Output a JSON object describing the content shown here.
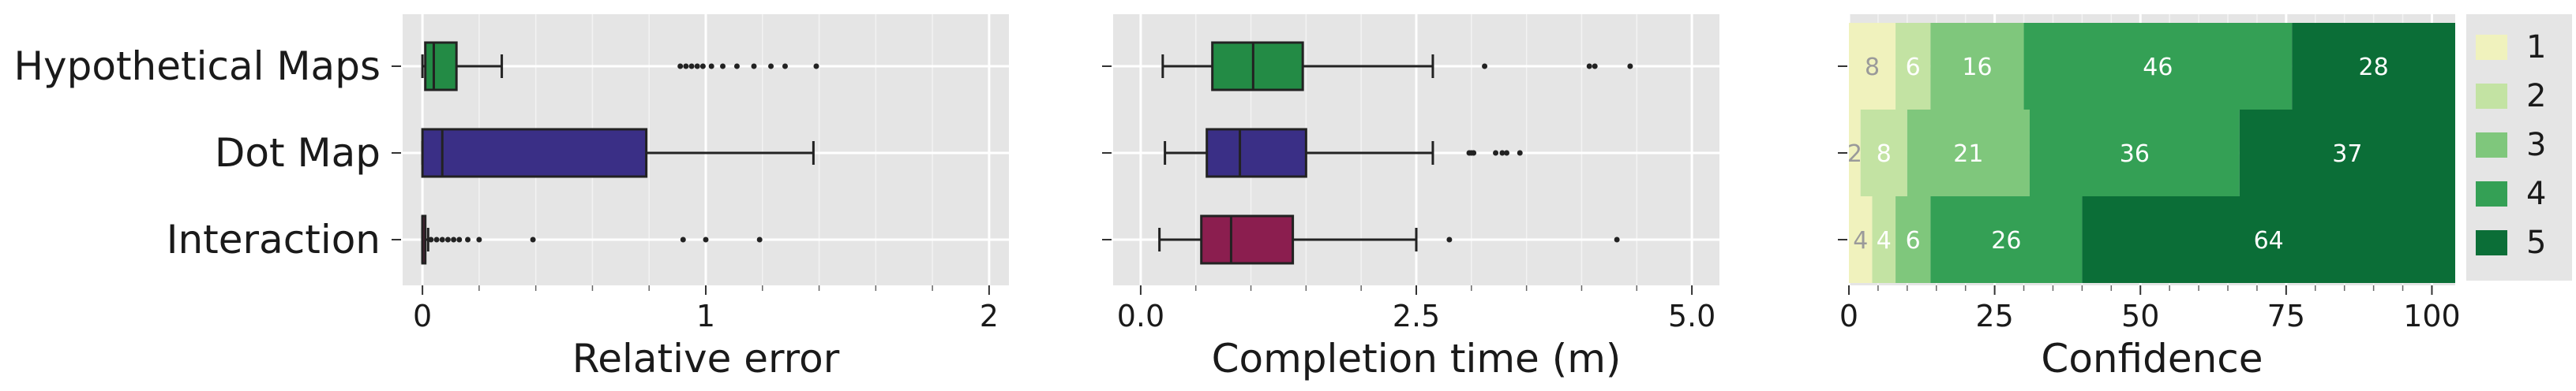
{
  "chart_data": [
    {
      "type": "box",
      "xlabel": "Relative error",
      "xlim": [
        -0.07,
        2.07
      ],
      "xticks": [
        0,
        1,
        2
      ],
      "xminor": [
        0.2,
        0.4,
        0.6,
        0.8,
        1.2,
        1.4,
        1.6,
        1.8
      ],
      "categories": [
        "Hypothetical Maps",
        "Dot Map",
        "Interaction"
      ],
      "boxes": [
        {
          "name": "Hypothetical Maps",
          "color": "#238b45",
          "whislo": 0.0,
          "q1": 0.01,
          "med": 0.04,
          "q3": 0.12,
          "whishi": 0.28,
          "fliers": [
            0.91,
            0.93,
            0.95,
            0.97,
            0.99,
            1.02,
            1.06,
            1.11,
            1.17,
            1.23,
            1.28,
            1.39
          ]
        },
        {
          "name": "Dot Map",
          "color": "#3a2f86",
          "whislo": 0.0,
          "q1": 0.0,
          "med": 0.07,
          "q3": 0.79,
          "whishi": 1.38,
          "fliers": []
        },
        {
          "name": "Interaction",
          "color": "#8b1e4f",
          "whislo": 0.0,
          "q1": 0.0,
          "med": 0.0,
          "q3": 0.01,
          "whishi": 0.02,
          "fliers": [
            0.03,
            0.05,
            0.07,
            0.09,
            0.11,
            0.13,
            0.16,
            0.2,
            0.39,
            0.92,
            1.0,
            1.19
          ]
        }
      ]
    },
    {
      "type": "box",
      "xlabel": "Completion time (m)",
      "xlim": [
        -0.25,
        5.25
      ],
      "xticks": [
        0.0,
        2.5,
        5.0
      ],
      "xminor": [
        0.5,
        1.0,
        1.5,
        2.0,
        3.0,
        3.5,
        4.0,
        4.5
      ],
      "categories": [
        "Hypothetical Maps",
        "Dot Map",
        "Interaction"
      ],
      "boxes": [
        {
          "name": "Hypothetical Maps",
          "color": "#238b45",
          "whislo": 0.2,
          "q1": 0.65,
          "med": 1.02,
          "q3": 1.47,
          "whishi": 2.65,
          "fliers": [
            3.12,
            4.07,
            4.12,
            4.44
          ]
        },
        {
          "name": "Dot Map",
          "color": "#3a2f86",
          "whislo": 0.22,
          "q1": 0.6,
          "med": 0.9,
          "q3": 1.5,
          "whishi": 2.65,
          "fliers": [
            2.98,
            3.0,
            3.02,
            3.22,
            3.28,
            3.32,
            3.44
          ]
        },
        {
          "name": "Interaction",
          "color": "#8b1e4f",
          "whislo": 0.17,
          "q1": 0.55,
          "med": 0.82,
          "q3": 1.38,
          "whishi": 2.5,
          "fliers": [
            2.8,
            4.32
          ]
        }
      ]
    },
    {
      "type": "stacked-bar-horizontal",
      "xlabel": "Confidence",
      "xlim": [
        0,
        104
      ],
      "xticks": [
        0,
        25,
        50,
        75,
        100
      ],
      "xminor": [
        5,
        10,
        15,
        20,
        30,
        35,
        40,
        45,
        55,
        60,
        65,
        70,
        80,
        85,
        90,
        95
      ],
      "categories": [
        "Hypothetical Maps",
        "Dot Map",
        "Interaction"
      ],
      "legend_position": "right",
      "series": [
        {
          "name": "1",
          "color": "#f0f2bd",
          "label_color": "#9a9a9a",
          "values": [
            8,
            2,
            4
          ]
        },
        {
          "name": "2",
          "color": "#c3e3a3",
          "label_color": "#ffffff",
          "values": [
            6,
            8,
            4
          ]
        },
        {
          "name": "3",
          "color": "#7fc77c",
          "label_color": "#ffffff",
          "values": [
            16,
            21,
            6
          ]
        },
        {
          "name": "4",
          "color": "#34a055",
          "label_color": "#ffffff",
          "values": [
            46,
            36,
            26
          ]
        },
        {
          "name": "5",
          "color": "#0b6e37",
          "label_color": "#ffffff",
          "values": [
            28,
            37,
            64
          ]
        }
      ]
    }
  ]
}
